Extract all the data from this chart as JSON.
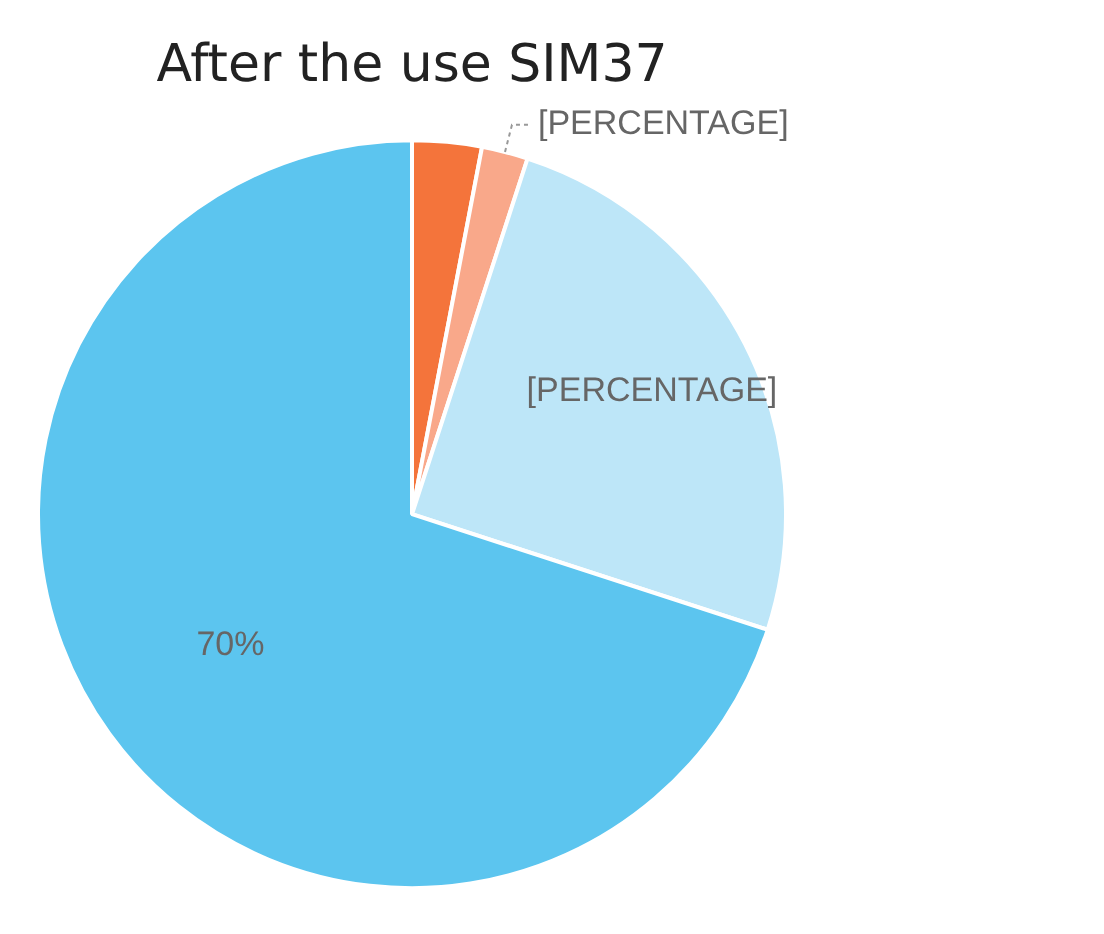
{
  "chart_data": {
    "type": "pie",
    "title": "After the use SIM37",
    "categories": [
      null,
      null,
      null,
      null
    ],
    "values": [
      3,
      2,
      25,
      70
    ],
    "colors": [
      "#f4743b",
      "#f9a88a",
      "#bde6f8",
      "#5cc5ef"
    ],
    "value_labels": [
      null,
      "[PERCENTAGE]",
      "[PERCENTAGE]",
      "70%"
    ],
    "legend": false
  }
}
